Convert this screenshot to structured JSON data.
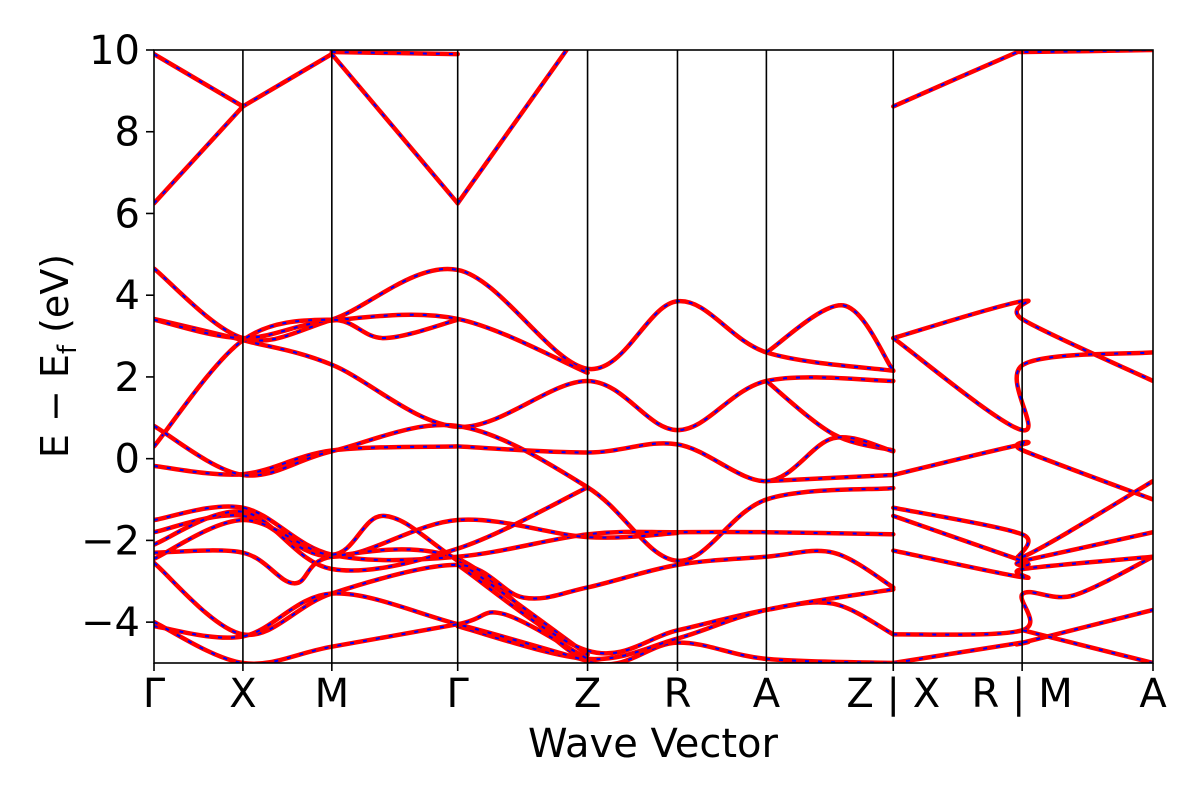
{
  "chart_data": {
    "type": "line",
    "title": "",
    "xlabel": "Wave Vector",
    "ylabel": "E − E",
    "ylabel_sub": "f",
    "ylabel_unit": " (eV)",
    "ylim": [
      -5,
      10
    ],
    "yticks": [
      10,
      8,
      6,
      4,
      2,
      0,
      -2,
      -4
    ],
    "ytick_labels": [
      "10",
      "8",
      "6",
      "4",
      "2",
      "0",
      "−2",
      "−4"
    ],
    "xlim": [
      0,
      1
    ],
    "x_ticks": [
      {
        "x": 0.0,
        "label": "Γ"
      },
      {
        "x": 0.089,
        "label": "X"
      },
      {
        "x": 0.178,
        "label": "M"
      },
      {
        "x": 0.304,
        "label": "Γ"
      },
      {
        "x": 0.434,
        "label": "Z"
      },
      {
        "x": 0.524,
        "label": "R"
      },
      {
        "x": 0.613,
        "label": "A"
      },
      {
        "x": 0.74,
        "label": "Z | X"
      },
      {
        "x": 0.869,
        "label": "R | M"
      },
      {
        "x": 1.0,
        "label": "A"
      }
    ],
    "series_colors": {
      "primary": "#ff0000",
      "overlay": "#0000ff"
    },
    "bands": [
      [
        [
          0.0,
          -0.18
        ],
        [
          0.089,
          -0.38
        ],
        [
          0.178,
          0.2
        ],
        [
          0.304,
          0.3
        ]
      ],
      [
        [
          0.0,
          6.25
        ],
        [
          0.089,
          8.62
        ]
      ],
      [
        [
          0.089,
          8.62
        ],
        [
          0.178,
          9.9
        ]
      ],
      [
        [
          0.178,
          9.9
        ],
        [
          0.304,
          6.25
        ]
      ],
      [
        [
          0.304,
          6.25
        ],
        [
          0.413,
          10.0
        ]
      ],
      [
        [
          0.0,
          9.9
        ],
        [
          0.089,
          8.62
        ]
      ],
      [
        [
          0.178,
          9.95
        ],
        [
          0.304,
          9.9
        ]
      ],
      [
        [
          0.0,
          4.65
        ],
        [
          0.089,
          2.95
        ],
        [
          0.178,
          3.4
        ],
        [
          0.304,
          4.62
        ],
        [
          0.434,
          2.2
        ],
        [
          0.524,
          3.85
        ],
        [
          0.613,
          2.6
        ],
        [
          0.74,
          2.15
        ]
      ],
      [
        [
          0.0,
          3.42
        ],
        [
          0.089,
          2.9
        ],
        [
          0.178,
          2.3
        ],
        [
          0.304,
          0.78
        ],
        [
          0.434,
          1.9
        ],
        [
          0.524,
          0.7
        ],
        [
          0.613,
          1.9
        ],
        [
          0.74,
          1.9
        ]
      ],
      [
        [
          0.0,
          3.4
        ],
        [
          0.089,
          2.95
        ],
        [
          0.178,
          3.38
        ],
        [
          0.304,
          3.42
        ],
        [
          0.434,
          2.1
        ]
      ],
      [
        [
          0.0,
          0.3
        ],
        [
          0.089,
          2.9
        ],
        [
          0.178,
          3.4
        ],
        [
          0.23,
          2.95
        ],
        [
          0.304,
          3.4
        ]
      ],
      [
        [
          0.613,
          2.6
        ],
        [
          0.69,
          3.75
        ],
        [
          0.74,
          2.15
        ]
      ],
      [
        [
          0.613,
          1.9
        ],
        [
          0.68,
          0.6
        ],
        [
          0.74,
          0.2
        ]
      ],
      [
        [
          0.0,
          0.8
        ],
        [
          0.089,
          -0.4
        ],
        [
          0.178,
          0.18
        ],
        [
          0.304,
          0.8
        ],
        [
          0.434,
          -0.7
        ],
        [
          0.524,
          -2.5
        ],
        [
          0.613,
          -1.0
        ],
        [
          0.74,
          -0.72
        ]
      ],
      [
        [
          0.304,
          0.3
        ],
        [
          0.434,
          0.15
        ],
        [
          0.524,
          0.35
        ],
        [
          0.613,
          -0.55
        ],
        [
          0.68,
          0.5
        ],
        [
          0.74,
          0.18
        ]
      ],
      [
        [
          0.613,
          -0.55
        ],
        [
          0.74,
          -0.4
        ]
      ],
      [
        [
          0.0,
          -1.5
        ],
        [
          0.089,
          -1.2
        ],
        [
          0.178,
          -2.35
        ],
        [
          0.304,
          -2.4
        ],
        [
          0.434,
          -1.85
        ],
        [
          0.524,
          -1.8
        ],
        [
          0.613,
          -1.8
        ],
        [
          0.74,
          -1.85
        ]
      ],
      [
        [
          0.0,
          -1.8
        ],
        [
          0.089,
          -1.4
        ],
        [
          0.178,
          -2.4
        ],
        [
          0.304,
          -1.5
        ],
        [
          0.434,
          -1.92
        ],
        [
          0.524,
          -1.82
        ]
      ],
      [
        [
          0.0,
          -2.1
        ],
        [
          0.089,
          -1.3
        ],
        [
          0.178,
          -2.7
        ],
        [
          0.304,
          -2.2
        ],
        [
          0.434,
          -0.7
        ]
      ],
      [
        [
          0.0,
          -2.3
        ],
        [
          0.089,
          -2.3
        ],
        [
          0.14,
          -3.05
        ],
        [
          0.178,
          -2.4
        ],
        [
          0.304,
          -2.45
        ],
        [
          0.434,
          -4.95
        ],
        [
          0.524,
          -4.5
        ],
        [
          0.613,
          -4.9
        ],
        [
          0.74,
          -5.0
        ]
      ],
      [
        [
          0.0,
          -2.45
        ],
        [
          0.089,
          -1.5
        ],
        [
          0.178,
          -2.35
        ],
        [
          0.23,
          -1.4
        ],
        [
          0.304,
          -2.5
        ],
        [
          0.434,
          -4.8
        ]
      ],
      [
        [
          0.0,
          -2.55
        ],
        [
          0.089,
          -4.3
        ],
        [
          0.178,
          -3.3
        ],
        [
          0.304,
          -2.6
        ],
        [
          0.37,
          -3.4
        ],
        [
          0.434,
          -3.15
        ],
        [
          0.524,
          -2.6
        ],
        [
          0.613,
          -2.4
        ],
        [
          0.68,
          -2.3
        ],
        [
          0.74,
          -3.15
        ]
      ],
      [
        [
          0.304,
          -2.6
        ],
        [
          0.434,
          -4.7
        ],
        [
          0.524,
          -4.2
        ],
        [
          0.613,
          -3.7
        ],
        [
          0.68,
          -3.55
        ],
        [
          0.74,
          -4.3
        ]
      ],
      [
        [
          0.304,
          -4.1
        ],
        [
          0.434,
          -4.9
        ],
        [
          0.524,
          -4.4
        ],
        [
          0.613,
          -3.7
        ],
        [
          0.74,
          -3.2
        ]
      ],
      [
        [
          0.0,
          -4.1
        ],
        [
          0.089,
          -4.35
        ],
        [
          0.178,
          -3.3
        ],
        [
          0.304,
          -4.05
        ],
        [
          0.434,
          -4.95
        ]
      ],
      [
        [
          0.0,
          -4.0
        ],
        [
          0.089,
          -5.0
        ],
        [
          0.178,
          -4.6
        ],
        [
          0.304,
          -4.05
        ],
        [
          0.35,
          -3.8
        ],
        [
          0.434,
          -4.9
        ]
      ],
      [
        [
          0.74,
          2.95
        ],
        [
          0.869,
          3.85
        ],
        [
          0.87,
          3.4
        ],
        [
          1.0,
          1.9
        ]
      ],
      [
        [
          0.74,
          2.95
        ],
        [
          0.869,
          0.7
        ],
        [
          0.87,
          2.3
        ],
        [
          1.0,
          2.6
        ]
      ],
      [
        [
          0.74,
          -0.4
        ],
        [
          0.869,
          0.35
        ],
        [
          0.87,
          0.2
        ],
        [
          1.0,
          -1.0
        ]
      ],
      [
        [
          0.74,
          -1.2
        ],
        [
          0.869,
          -1.85
        ],
        [
          0.87,
          -2.4
        ],
        [
          1.0,
          -0.55
        ]
      ],
      [
        [
          0.74,
          -1.4
        ],
        [
          0.869,
          -2.5
        ],
        [
          0.87,
          -2.5
        ],
        [
          1.0,
          -1.8
        ]
      ],
      [
        [
          0.74,
          -2.25
        ],
        [
          0.869,
          -2.9
        ],
        [
          0.87,
          -2.7
        ],
        [
          1.0,
          -2.4
        ]
      ],
      [
        [
          0.74,
          -4.3
        ],
        [
          0.869,
          -4.2
        ],
        [
          0.87,
          -3.3
        ],
        [
          0.92,
          -3.35
        ],
        [
          1.0,
          -2.4
        ]
      ],
      [
        [
          0.74,
          -5.0
        ],
        [
          0.869,
          -4.5
        ],
        [
          0.87,
          -4.5
        ],
        [
          1.0,
          -3.7
        ]
      ],
      [
        [
          0.87,
          -4.2
        ],
        [
          1.0,
          -5.0
        ]
      ],
      [
        [
          0.74,
          8.62
        ],
        [
          0.869,
          10.0
        ],
        [
          0.87,
          9.95
        ],
        [
          1.0,
          10.0
        ]
      ]
    ]
  }
}
